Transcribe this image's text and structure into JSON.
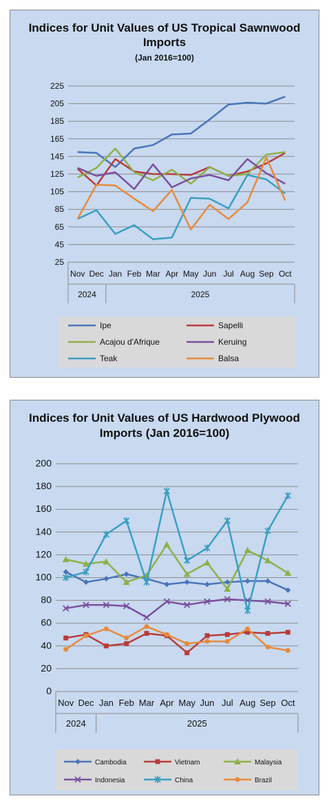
{
  "charts": [
    {
      "title": "Indices for Unit Values of US Tropical Sawnwood Imports",
      "subtitle": "(Jan 2016=100)",
      "chart_data": {
        "type": "line",
        "title": "Indices for Unit Values of US Tropical Sawnwood Imports",
        "subtitle": "(Jan 2016=100)",
        "categories": [
          "Nov",
          "Dec",
          "Jan",
          "Feb",
          "Mar",
          "Apr",
          "May",
          "Jun",
          "Jul",
          "Aug",
          "Sep",
          "Oct"
        ],
        "year_groups": [
          {
            "label": "2024",
            "count": 2
          },
          {
            "label": "2025",
            "count": 10
          }
        ],
        "ylim": [
          25,
          225
        ],
        "yticks": [
          25,
          45,
          65,
          85,
          105,
          125,
          145,
          165,
          185,
          205,
          225
        ],
        "grid": true,
        "legend_position": "bottom",
        "series": [
          {
            "name": "Ipe",
            "color": "#4a74b8",
            "marker": "none",
            "values": [
              150,
              149,
              133,
              154,
              158,
              170,
              171,
              187,
              204,
              206,
              205,
              213
            ]
          },
          {
            "name": "Sapelli",
            "color": "#b83c3a",
            "marker": "none",
            "values": [
              131,
              112,
              142,
              128,
              125,
              125,
              124,
              133,
              123,
              128,
              137,
              149
            ]
          },
          {
            "name": "Acajou d'Afrique",
            "color": "#8fb04a",
            "marker": "none",
            "values": [
              121,
              132,
              154,
              127,
              118,
              130,
              114,
              133,
              123,
              125,
              147,
              150
            ]
          },
          {
            "name": "Keruing",
            "color": "#7a4f9e",
            "marker": "none",
            "values": [
              132,
              123,
              127,
              108,
              136,
              110,
              120,
              124,
              118,
              142,
              126,
              114
            ]
          },
          {
            "name": "Teak",
            "color": "#3a9fc0",
            "marker": "none",
            "values": [
              74,
              84,
              57,
              67,
              51,
              53,
              98,
              97,
              86,
              124,
              119,
              103
            ]
          },
          {
            "name": "Balsa",
            "color": "#e88a3a",
            "marker": "none",
            "values": [
              74,
              113,
              112,
              97,
              83,
              107,
              62,
              90,
              74,
              93,
              144,
              95
            ]
          }
        ]
      }
    },
    {
      "title": "Indices for Unit Values of US Hardwood Plywood Imports (Jan 2016=100)",
      "chart_data": {
        "type": "line",
        "title": "Indices for Unit Values of US Hardwood Plywood Imports (Jan 2016=100)",
        "categories": [
          "Nov",
          "Dec",
          "Jan",
          "Feb",
          "Mar",
          "Apr",
          "May",
          "Jun",
          "Jul",
          "Aug",
          "Sep",
          "Oct"
        ],
        "year_groups": [
          {
            "label": "2024",
            "count": 2
          },
          {
            "label": "2025",
            "count": 10
          }
        ],
        "ylim": [
          0,
          200
        ],
        "yticks": [
          0,
          20,
          40,
          60,
          80,
          100,
          120,
          140,
          160,
          180,
          200
        ],
        "grid": true,
        "legend_position": "bottom",
        "series": [
          {
            "name": "Cambodia",
            "color": "#4a74b8",
            "marker": "diamond",
            "values": [
              105,
              96,
              99,
              103,
              99,
              94,
              96,
              94,
              96,
              97,
              97,
              89
            ]
          },
          {
            "name": "Vietnam",
            "color": "#b83c3a",
            "marker": "square",
            "values": [
              47,
              50,
              40,
              42,
              51,
              49,
              34,
              49,
              50,
              52,
              51,
              52
            ]
          },
          {
            "name": "Malaysia",
            "color": "#8fb04a",
            "marker": "triangle",
            "values": [
              116,
              112,
              114,
              96,
              102,
              129,
              103,
              113,
              90,
              124,
              115,
              104
            ]
          },
          {
            "name": "Indonesia",
            "color": "#7a4f9e",
            "marker": "x",
            "values": [
              73,
              76,
              76,
              75,
              65,
              79,
              76,
              79,
              81,
              80,
              79,
              77
            ]
          },
          {
            "name": "China",
            "color": "#3a9fc0",
            "marker": "star",
            "values": [
              100,
              105,
              138,
              150,
              96,
              176,
              115,
              126,
              150,
              71,
              141,
              172
            ]
          },
          {
            "name": "Brazil",
            "color": "#e88a3a",
            "marker": "circle",
            "values": [
              37,
              49,
              55,
              47,
              57,
              50,
              42,
              44,
              44,
              55,
              39,
              36
            ]
          }
        ]
      }
    }
  ]
}
